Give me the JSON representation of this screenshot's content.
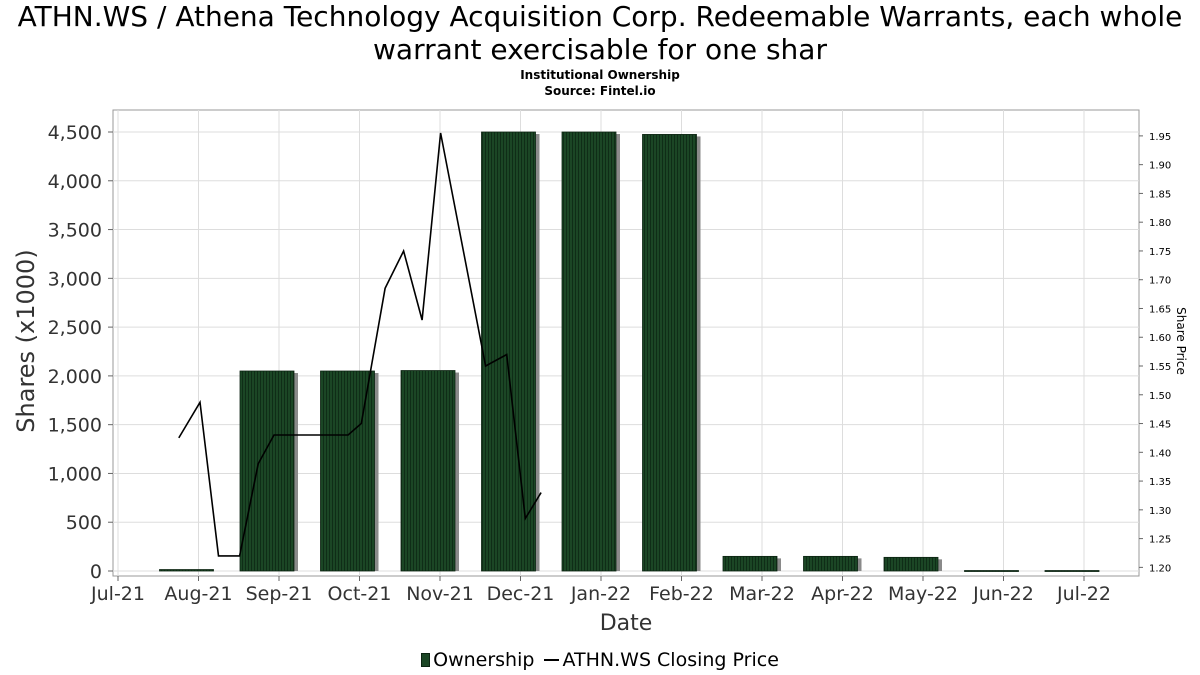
{
  "title": "ATHN.WS / Athena Technology Acquisition Corp. Redeemable Warrants, each whole warrant exercisable for one shar",
  "subtitle_line1": "Institutional Ownership",
  "subtitle_line2": "Source: Fintel.io",
  "legend": {
    "ownership_label": "Ownership",
    "price_label": "ATHN.WS Closing Price"
  },
  "colors": {
    "bar_fill": "#1b4625",
    "bar_stripe": "#0f2d17",
    "bar_shadow": "#8a8a8a",
    "grid": "#dddddd",
    "line": "#000000"
  },
  "chart_data": {
    "type": "bar",
    "xlabel": "Date",
    "ylabel": "Shares (x1000)",
    "y2label": "Share Price",
    "ylim": [
      0,
      4750
    ],
    "y2lim": [
      1.185,
      1.995
    ],
    "x_ticks": [
      "Jul-21",
      "Aug-21",
      "Sep-21",
      "Oct-21",
      "Nov-21",
      "Dec-21",
      "Jan-22",
      "Feb-22",
      "Mar-22",
      "Apr-22",
      "May-22",
      "Jun-22",
      "Jul-22"
    ],
    "y_ticks": [
      "0",
      "500",
      "1,000",
      "1,500",
      "2,000",
      "2,500",
      "3,000",
      "3,500",
      "4,000",
      "4,500"
    ],
    "y2_ticks": [
      "1.20",
      "1.25",
      "1.30",
      "1.35",
      "1.40",
      "1.45",
      "1.50",
      "1.55",
      "1.60",
      "1.65",
      "1.70",
      "1.75",
      "1.80",
      "1.85",
      "1.90",
      "1.95"
    ],
    "grid": true,
    "legend_position": "bottom",
    "series": [
      {
        "name": "Ownership",
        "type": "bar",
        "categories": [
          "Aug-21",
          "Sep-21",
          "Oct-21",
          "Nov-21",
          "Dec-21",
          "Jan-22",
          "Feb-22",
          "Mar-22",
          "Apr-22",
          "May-22",
          "Jun-22",
          "Jul-22"
        ],
        "values": [
          15,
          2050,
          2050,
          2055,
          4500,
          4500,
          4475,
          150,
          150,
          140,
          5,
          5
        ]
      },
      {
        "name": "ATHN.WS Closing Price",
        "type": "line",
        "x": [
          "2021-07-24",
          "2021-08-01",
          "2021-08-08",
          "2021-08-16",
          "2021-08-23",
          "2021-08-29",
          "2021-09-12",
          "2021-09-26",
          "2021-10-01",
          "2021-10-10",
          "2021-10-17",
          "2021-10-24",
          "2021-10-31",
          "2021-11-17",
          "2021-11-25",
          "2021-12-02",
          "2021-12-08"
        ],
        "values": [
          1.425,
          1.487,
          1.22,
          1.22,
          1.38,
          1.43,
          1.43,
          1.43,
          1.45,
          1.685,
          1.75,
          1.63,
          1.955,
          1.55,
          1.57,
          1.285,
          1.33
        ]
      }
    ]
  }
}
